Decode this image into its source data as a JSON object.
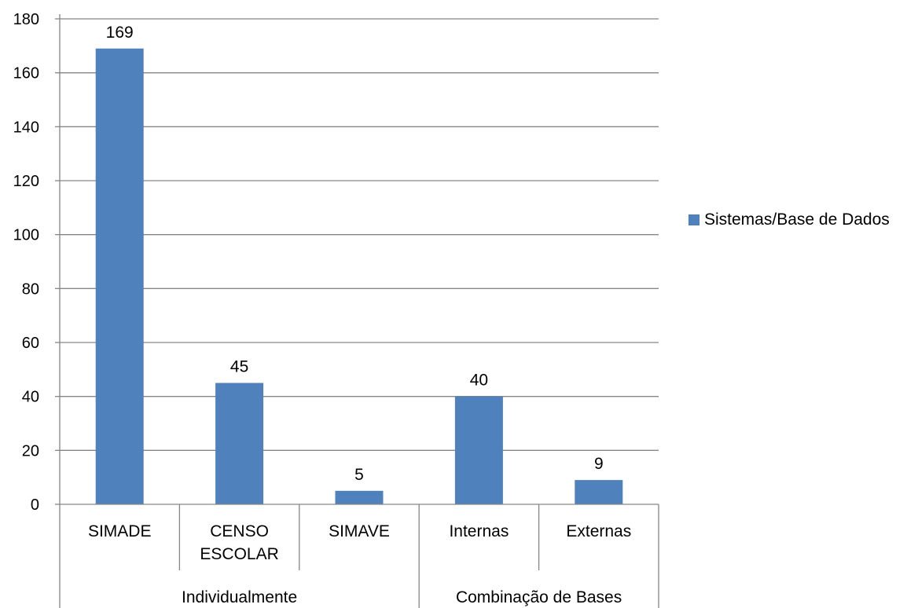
{
  "chart_data": {
    "type": "bar",
    "categories": [
      "SIMADE",
      "CENSO ESCOLAR",
      "SIMAVE",
      "Internas",
      "Externas"
    ],
    "category_lines": [
      [
        "SIMADE"
      ],
      [
        "CENSO",
        "ESCOLAR"
      ],
      [
        "SIMAVE"
      ],
      [
        "Internas"
      ],
      [
        "Externas"
      ]
    ],
    "groups": [
      {
        "label": "Individualmente",
        "categories": [
          "SIMADE",
          "CENSO ESCOLAR",
          "SIMAVE"
        ]
      },
      {
        "label": "Combinação de Bases",
        "categories": [
          "Internas",
          "Externas"
        ]
      }
    ],
    "series": [
      {
        "name": "Sistemas/Base de Dados",
        "values": [
          169,
          45,
          5,
          40,
          9
        ],
        "color": "#4F81BD"
      }
    ],
    "data_labels": [
      "169",
      "45",
      "5",
      "40",
      "9"
    ],
    "ylim": [
      0,
      180
    ],
    "yticks": [
      0,
      20,
      40,
      60,
      80,
      100,
      120,
      140,
      160,
      180
    ],
    "grid": true,
    "legend_position": "right"
  }
}
